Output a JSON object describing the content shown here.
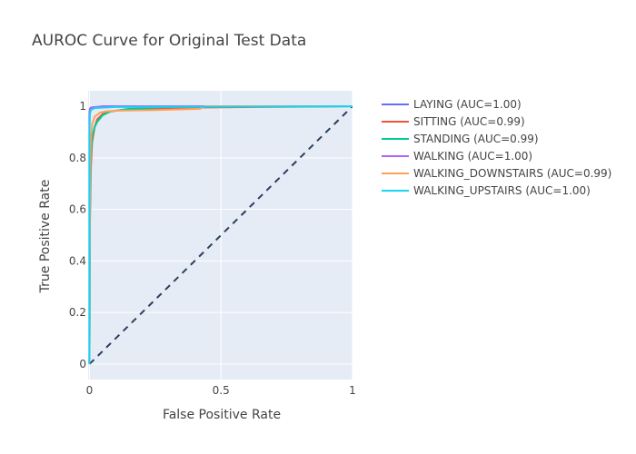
{
  "chart_data": {
    "type": "line",
    "title": "AUROC Curve for Original Test Data",
    "xlabel": "False Positive Rate",
    "ylabel": "True Positive Rate",
    "xlim": [
      -0.005,
      1.0
    ],
    "ylim": [
      -0.06,
      1.06
    ],
    "x_ticks": [
      0,
      0.5,
      1
    ],
    "x_tick_labels": [
      "0",
      "0.5",
      "1"
    ],
    "y_ticks": [
      0,
      0.2,
      0.4,
      0.6,
      0.8,
      1
    ],
    "y_tick_labels": [
      "0",
      "0.2",
      "0.4",
      "0.6",
      "0.8",
      "1"
    ],
    "grid": true,
    "legend_position": "right",
    "plot_background": "#e5ecf6",
    "diagonal": {
      "x": [
        0,
        1
      ],
      "y": [
        0,
        1
      ],
      "color": "#2a3f5f",
      "dash": "dashed"
    },
    "series": [
      {
        "name": "LAYING (AUC=1.00)",
        "color": "#636efa",
        "x": [
          0,
          0,
          0.002,
          0.005,
          0.02,
          0.08,
          0.17,
          1
        ],
        "y": [
          0,
          0.97,
          0.99,
          0.995,
          0.997,
          0.998,
          0.999,
          1
        ]
      },
      {
        "name": "SITTING (AUC=0.99)",
        "color": "#ef553b",
        "x": [
          0,
          0.002,
          0.005,
          0.01,
          0.02,
          0.03,
          0.05,
          0.08,
          0.12,
          0.2,
          0.4,
          1
        ],
        "y": [
          0,
          0.55,
          0.75,
          0.86,
          0.92,
          0.95,
          0.97,
          0.98,
          0.985,
          0.99,
          0.995,
          1
        ]
      },
      {
        "name": "STANDING (AUC=0.99)",
        "color": "#00cc96",
        "x": [
          0,
          0.002,
          0.005,
          0.01,
          0.02,
          0.03,
          0.05,
          0.08,
          0.15,
          0.3,
          1
        ],
        "y": [
          0,
          0.6,
          0.8,
          0.88,
          0.92,
          0.94,
          0.965,
          0.98,
          0.99,
          0.997,
          1
        ]
      },
      {
        "name": "WALKING (AUC=1.00)",
        "color": "#ab63fa",
        "x": [
          0,
          0,
          0.002,
          0.01,
          0.05,
          1
        ],
        "y": [
          0,
          0.97,
          0.99,
          0.995,
          1.0,
          1
        ]
      },
      {
        "name": "WALKING_DOWNSTAIRS (AUC=0.99)",
        "color": "#ffa15a",
        "x": [
          0,
          0.002,
          0.005,
          0.01,
          0.02,
          0.04,
          0.06,
          0.1,
          0.25,
          0.42,
          0.44,
          1
        ],
        "y": [
          0,
          0.7,
          0.86,
          0.93,
          0.96,
          0.975,
          0.98,
          0.983,
          0.985,
          0.99,
          1.0,
          1
        ]
      },
      {
        "name": "WALKING_UPSTAIRS (AUC=1.00)",
        "color": "#19d3f3",
        "x": [
          0,
          0,
          0.002,
          0.005,
          0.02,
          0.1,
          1
        ],
        "y": [
          0,
          0.9,
          0.97,
          0.985,
          0.993,
          0.997,
          1
        ]
      }
    ]
  }
}
